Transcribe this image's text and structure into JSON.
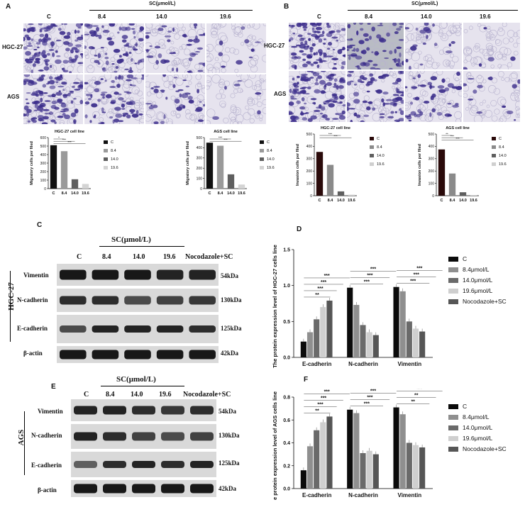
{
  "panelA": {
    "letter": "A",
    "header": "SC(μmol/L)",
    "cols": [
      "C",
      "8.4",
      "14.0",
      "19.6"
    ],
    "rows": [
      "HGC-27",
      "AGS"
    ]
  },
  "panelB": {
    "letter": "B",
    "header": "SC(μmol/L)",
    "cols": [
      "C",
      "8.4",
      "14.0",
      "19.6"
    ],
    "rows": [
      "HGC-27",
      "AGS"
    ]
  },
  "panelC": {
    "letter": "C",
    "header": "SC(μmol/L)",
    "cols": [
      "C",
      "8.4",
      "14.0",
      "19.6",
      "Nocodazole+SC"
    ],
    "cell": "HGC-27",
    "proteins": [
      "Vimentin",
      "N-cadherin",
      "E-cadherin",
      "β-actin"
    ],
    "kda": [
      "54kDa",
      "130kDa",
      "125kDa",
      "42kDa"
    ]
  },
  "panelE": {
    "letter": "E",
    "header": "SC(μmol/L)",
    "cols": [
      "C",
      "8.4",
      "14.0",
      "19.6",
      "Nocodazole+SC"
    ],
    "cell": "AGS",
    "proteins": [
      "Vimentin",
      "N-cadherin",
      "E-cadherin",
      "β-actin"
    ],
    "kda": [
      "54kDa",
      "130kDa",
      "125kDa",
      "42kDa"
    ]
  },
  "panelD": {
    "letter": "D"
  },
  "panelF": {
    "letter": "F"
  },
  "chart_data": [
    {
      "id": "A1",
      "type": "bar",
      "title": "HGC-27 cell line",
      "ylabel": "Migratory cells per filed",
      "categories": [
        "C",
        "8.4",
        "14.0",
        "19.6"
      ],
      "values": [
        510,
        440,
        110,
        55
      ],
      "ylim": [
        0,
        600
      ],
      "yticks": [
        0,
        100,
        200,
        300,
        400,
        500,
        600
      ],
      "legend": [
        "C",
        "8.4",
        "14.0",
        "19.6"
      ],
      "colors": [
        "#111111",
        "#9a9a9a",
        "#5f5f5f",
        "#d4d4d4"
      ],
      "sig": [
        {
          "from": 0,
          "to": 1,
          "label": "*"
        },
        {
          "from": 0,
          "to": 2,
          "label": "***"
        },
        {
          "from": 0,
          "to": 3,
          "label": "***"
        }
      ]
    },
    {
      "id": "A2",
      "type": "bar",
      "title": "AGS cell line",
      "ylabel": "Migratory cells per filed",
      "categories": [
        "C",
        "8.4",
        "14.0",
        "19.6"
      ],
      "values": [
        450,
        420,
        140,
        40
      ],
      "ylim": [
        0,
        500
      ],
      "yticks": [
        0,
        100,
        200,
        300,
        400,
        500
      ],
      "legend": [
        "C",
        "8.4",
        "14.0",
        "19.6"
      ],
      "colors": [
        "#111111",
        "#9a9a9a",
        "#5f5f5f",
        "#d4d4d4"
      ],
      "sig": [
        {
          "from": 0,
          "to": 2,
          "label": "***"
        },
        {
          "from": 0,
          "to": 3,
          "label": "***"
        }
      ]
    },
    {
      "id": "B1",
      "type": "bar",
      "title": "HGC-27 cell line",
      "ylabel": "Invasion cells per filed",
      "categories": [
        "C",
        "8.4",
        "14.0",
        "19.6"
      ],
      "values": [
        355,
        250,
        35,
        8
      ],
      "ylim": [
        0,
        500
      ],
      "yticks": [
        0,
        100,
        200,
        300,
        400,
        500
      ],
      "legend": [
        "C",
        "8.4",
        "14.0",
        "19.6"
      ],
      "colors": [
        "#2a0a0a",
        "#8a8a8a",
        "#5f5f5f",
        "#cfcfcf"
      ],
      "sig": [
        {
          "from": 0,
          "to": 2,
          "label": "***"
        },
        {
          "from": 0,
          "to": 3,
          "label": "***"
        }
      ]
    },
    {
      "id": "B2",
      "type": "bar",
      "title": "AGS cell line",
      "ylabel": "Invasion cells per filed",
      "categories": [
        "C",
        "8.4",
        "14.0",
        "19.6"
      ],
      "values": [
        375,
        180,
        28,
        5
      ],
      "ylim": [
        0,
        500
      ],
      "yticks": [
        0,
        100,
        200,
        300,
        400,
        500
      ],
      "legend": [
        "C",
        "8.4",
        "14.0",
        "19.6"
      ],
      "colors": [
        "#2a0a0a",
        "#8a8a8a",
        "#5f5f5f",
        "#cfcfcf"
      ],
      "sig": [
        {
          "from": 0,
          "to": 1,
          "label": "**"
        },
        {
          "from": 0,
          "to": 2,
          "label": "***"
        },
        {
          "from": 0,
          "to": 3,
          "label": "***"
        }
      ]
    },
    {
      "id": "D",
      "type": "bar",
      "ylabel": "The protein expression level of HGC-27 cells line",
      "categories": [
        "E-cadherin",
        "N-cadherin",
        "Vimentin"
      ],
      "series": [
        {
          "name": "C",
          "values": [
            0.22,
            0.97,
            0.98
          ]
        },
        {
          "name": "8.4μmol/L",
          "values": [
            0.35,
            0.73,
            0.92
          ]
        },
        {
          "name": "14.0μmol/L",
          "values": [
            0.53,
            0.45,
            0.5
          ]
        },
        {
          "name": "19.6μmol/L",
          "values": [
            0.7,
            0.35,
            0.4
          ]
        },
        {
          "name": "Nocodazole+SC",
          "values": [
            0.79,
            0.31,
            0.36
          ]
        }
      ],
      "ylim": [
        0,
        1.5
      ],
      "yticks": [
        0,
        0.5,
        1.0,
        1.5
      ],
      "colors": [
        "#0b0b0b",
        "#8f8f8f",
        "#6a6a6a",
        "#cfcfcf",
        "#565656"
      ],
      "sig": [
        {
          "group": 0,
          "from": 0,
          "to": 1,
          "label": "**"
        },
        {
          "group": 0,
          "from": 0,
          "to": 2,
          "label": "***"
        },
        {
          "group": 0,
          "from": 0,
          "to": 3,
          "label": "***"
        },
        {
          "group": 0,
          "from": 0,
          "to": 4,
          "label": "***"
        },
        {
          "group": 1,
          "from": 0,
          "to": 2,
          "label": "***"
        },
        {
          "group": 1,
          "from": 0,
          "to": 3,
          "label": "***"
        },
        {
          "group": 1,
          "from": 0,
          "to": 4,
          "label": "***"
        },
        {
          "group": 2,
          "from": 0,
          "to": 2,
          "label": "***"
        },
        {
          "group": 2,
          "from": 0,
          "to": 3,
          "label": "***"
        },
        {
          "group": 2,
          "from": 0,
          "to": 4,
          "label": "***"
        }
      ]
    },
    {
      "id": "F",
      "type": "bar",
      "ylabel": "e protein expression level of AGS cells line",
      "categories": [
        "E-cadherin",
        "N-cadherin",
        "Vimentin"
      ],
      "series": [
        {
          "name": "C",
          "values": [
            0.16,
            0.69,
            0.71
          ]
        },
        {
          "name": "8.4μmol/L",
          "values": [
            0.37,
            0.66,
            0.65
          ]
        },
        {
          "name": "14.0μmol/L",
          "values": [
            0.51,
            0.31,
            0.4
          ]
        },
        {
          "name": "19.6μmol/L",
          "values": [
            0.58,
            0.33,
            0.38
          ]
        },
        {
          "name": "Nocodazole+SC",
          "values": [
            0.63,
            0.3,
            0.36
          ]
        }
      ],
      "ylim": [
        0,
        0.8
      ],
      "yticks": [
        0,
        0.2,
        0.4,
        0.6,
        0.8
      ],
      "colors": [
        "#0b0b0b",
        "#8f8f8f",
        "#6a6a6a",
        "#cfcfcf",
        "#565656"
      ],
      "sig": [
        {
          "group": 0,
          "from": 0,
          "to": 1,
          "label": "**"
        },
        {
          "group": 0,
          "from": 0,
          "to": 2,
          "label": "***"
        },
        {
          "group": 0,
          "from": 0,
          "to": 3,
          "label": "***"
        },
        {
          "group": 0,
          "from": 0,
          "to": 4,
          "label": "***"
        },
        {
          "group": 1,
          "from": 0,
          "to": 2,
          "label": "***"
        },
        {
          "group": 1,
          "from": 0,
          "to": 3,
          "label": "***"
        },
        {
          "group": 1,
          "from": 0,
          "to": 4,
          "label": "***"
        },
        {
          "group": 2,
          "from": 0,
          "to": 2,
          "label": "**"
        },
        {
          "group": 2,
          "from": 0,
          "to": 3,
          "label": "**"
        },
        {
          "group": 2,
          "from": 0,
          "to": 4,
          "label": "***"
        }
      ]
    }
  ]
}
